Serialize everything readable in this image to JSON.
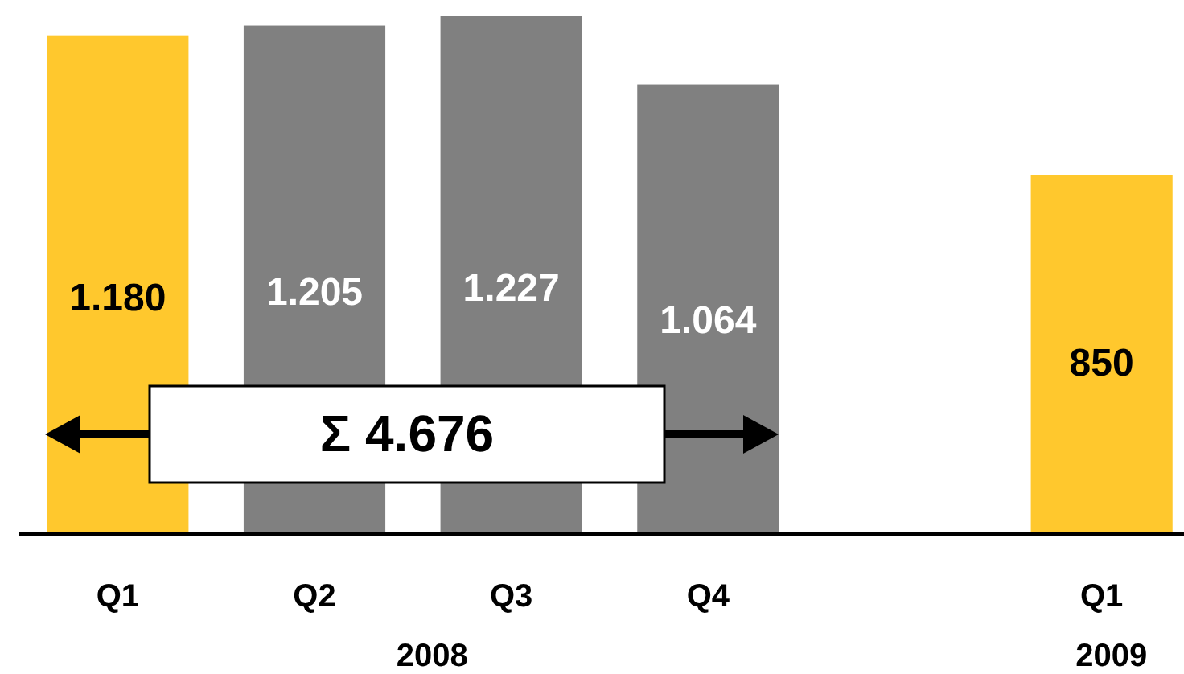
{
  "chart_data": {
    "type": "bar",
    "categories": [
      "Q1",
      "Q2",
      "Q3",
      "Q4",
      null,
      "Q1"
    ],
    "values": [
      1180,
      1205,
      1227,
      1064,
      null,
      850
    ],
    "colors": [
      "#ffc82d",
      "#808080",
      "#808080",
      "#808080",
      null,
      "#ffc82d"
    ],
    "value_labels": [
      "1.180",
      "1.205",
      "1.227",
      "1.064",
      null,
      "850"
    ],
    "tick_labels": "x",
    "annotations": [
      "Σ 4.676",
      "2008",
      "2009"
    ]
  }
}
